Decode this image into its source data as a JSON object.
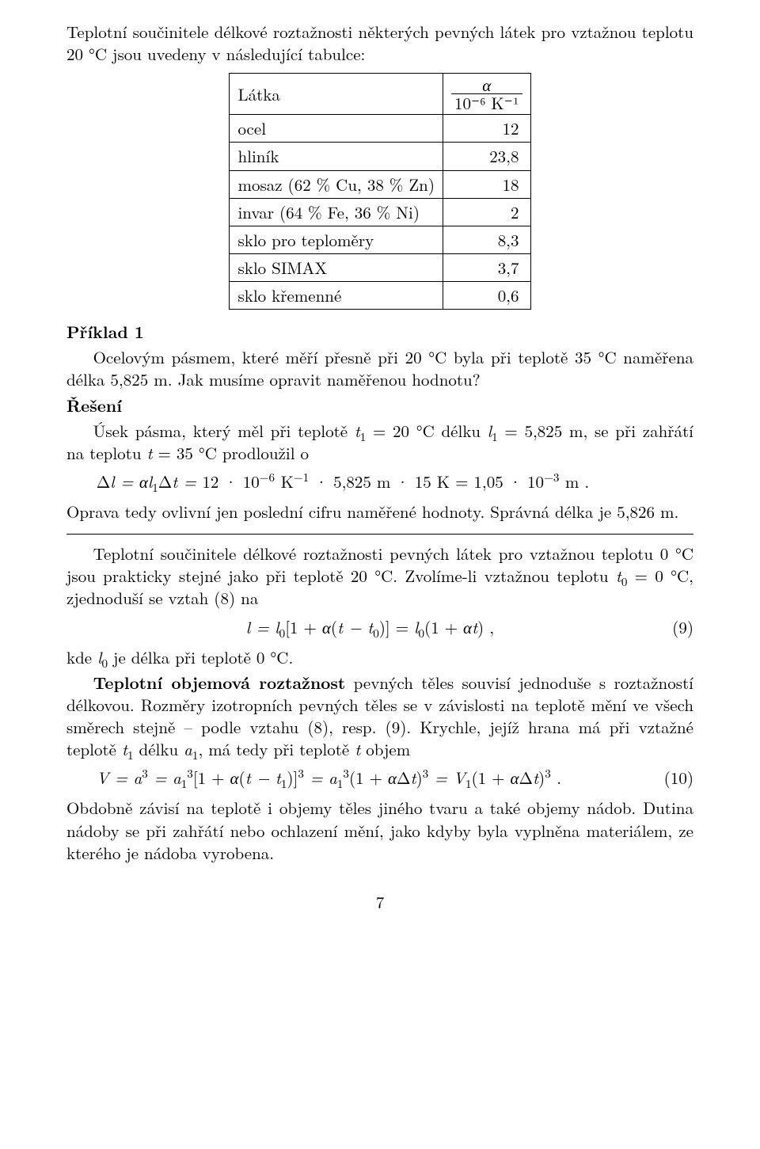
{
  "intro_p1": "Teplotní součinitele délkové roztažnosti některých pevných látek pro vztažnou teplotu 20 °C jsou uvedeny v následující tabulce:",
  "table": {
    "head_c1": "Látka",
    "alpha_sym": "α",
    "alpha_unit": "10⁻⁶ K⁻¹",
    "rows": [
      {
        "label": "ocel",
        "val": "12"
      },
      {
        "label": "hliník",
        "val": "23,8"
      },
      {
        "label": "mosaz (62 % Cu, 38 % Zn)",
        "val": "18"
      },
      {
        "label": "invar (64 % Fe, 36 % Ni)",
        "val": "2"
      },
      {
        "label": "sklo pro teploměry",
        "val": "8,3"
      },
      {
        "label": "sklo SIMAX",
        "val": "3,7"
      },
      {
        "label": "sklo křemenné",
        "val": "0,6"
      }
    ]
  },
  "ex1_head": "Příklad 1",
  "ex1_body_a": "Ocelovým pásmem, které měří přesně při 20 °C byla při teplotě 35 °C naměřena délka 5,825 m. Jak musíme opravit naměřenou hodnotu?",
  "ex1_sol_head": "Řešení",
  "ex1_sol_txt_a": "Úsek pásma, který měl při teplotě ",
  "ex1_sol_txt_b": " = 20 °C délku ",
  "ex1_sol_txt_c": " = 5,825 m, se při zahřátí na teplotu ",
  "ex1_sol_txt_d": " = 35 °C prodloužil o",
  "eq1": "Δl = αl₁Δt = 12 · 10⁻⁶ K⁻¹ · 5,825 m · 15 K = 1,05 · 10⁻³ m .",
  "after_eq1": "Oprava tedy ovlivní jen poslední cifru naměřené hodnoty. Správná délka je 5,826 m.",
  "p_after_rule_a": "Teplotní součinitele délkové roztažnosti pevných látek pro vztažnou teplotu 0 °C jsou prakticky stejné jako při teplotě 20 °C. Zvolíme-li vztažnou teplotu ",
  "p_after_rule_b": " = 0 °C, zjednoduší se vztah (8) na",
  "eq9_body": "l = l₀[1 + α(t − t₀)] = l₀(1 + αt) ,",
  "eq9_tag": "(9)",
  "p_kde": " je délka při teplotě 0 °C.",
  "p_kde_pre": "kde ",
  "p_obj_a": "Teplotní objemová roztažnost",
  "p_obj_b": " pevných těles souvisí jednoduše s roztažností délkovou. Rozměry izotropních pevných těles se v závislosti na teplotě mění ve všech směrech stejně – podle vztahu (8), resp. (9). Krychle, jejíž hrana má při vztažné teplotě ",
  "p_obj_c": " délku ",
  "p_obj_d": ", má tedy při teplotě ",
  "p_obj_e": " objem",
  "eq10_body": "V = a³ = a₁³[1 + α(t − t₁)]³ = a₁³(1 + αΔt)³ = V₁(1 + αΔt)³ .",
  "eq10_tag": "(10)",
  "p_last": "Obdobně závisí na teplotě i objemy těles jiného tvaru a také objemy nádob. Dutina nádoby se při zahřátí nebo ochlazení mění, jako kdyby byla vyplněna materiálem, ze kterého je nádoba vyrobena.",
  "pagenum": "7"
}
